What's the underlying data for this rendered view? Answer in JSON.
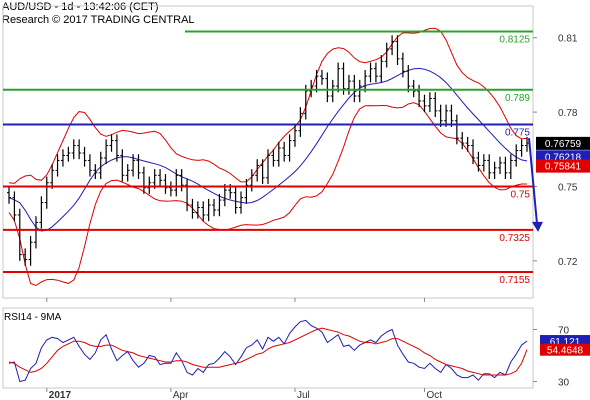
{
  "header": {
    "title": "AUD/USD - 1d - 13:42:06 (CET)",
    "credit": "Research © 2017 TRADING CENTRAL"
  },
  "colors": {
    "resistance": "#2ca02c",
    "pivot": "#1f1fb4",
    "support": "#e00000",
    "price_bars": "#000000",
    "bollinger": "#e00000",
    "moving_average": "#1f1fb4",
    "rsi": "#1f1fb4",
    "rsi_ma": "#e00000",
    "arrow": "#1f1fb4",
    "tag_price": "#000000",
    "tag_ma": "#1f1fb4",
    "tag_lower": "#e00000"
  },
  "chart_data": [
    {
      "type": "candlestick",
      "title": "AUD/USD - 1d",
      "ylim": [
        0.705,
        0.822
      ],
      "y_ticks": [
        0.72,
        0.75,
        0.78,
        0.81
      ],
      "y_tick_labels": [
        "0.72",
        "0.75",
        "0.78",
        "0.81"
      ],
      "x_tick_labels": [
        "2017",
        "Apr",
        "Jul",
        "Oct"
      ],
      "levels": [
        {
          "value": 0.8125,
          "label": "0.8125",
          "kind": "resistance"
        },
        {
          "value": 0.789,
          "label": "0.789",
          "kind": "resistance"
        },
        {
          "value": 0.775,
          "label": "0.775",
          "kind": "pivot"
        },
        {
          "value": 0.75,
          "label": "0.75",
          "kind": "support"
        },
        {
          "value": 0.7325,
          "label": "0.7325",
          "kind": "support"
        },
        {
          "value": 0.7155,
          "label": "0.7155",
          "kind": "support"
        }
      ],
      "price_tags": [
        {
          "value": 0.76759,
          "label": "0.76759",
          "kind": "price"
        },
        {
          "value": 0.76218,
          "label": "0.76218",
          "kind": "ma"
        },
        {
          "value": 0.75841,
          "label": "0.75841",
          "kind": "lower"
        }
      ],
      "arrow": {
        "from": 0.7695,
        "to": 0.7325
      },
      "close": [
        0.7455,
        0.7385,
        0.7225,
        0.7205,
        0.7275,
        0.7355,
        0.7435,
        0.7515,
        0.7565,
        0.7605,
        0.7625,
        0.7635,
        0.7665,
        0.7635,
        0.7605,
        0.7565,
        0.7555,
        0.7615,
        0.7665,
        0.7685,
        0.7625,
        0.7545,
        0.7565,
        0.7605,
        0.7555,
        0.7495,
        0.7515,
        0.7545,
        0.7525,
        0.7495,
        0.7485,
        0.7545,
        0.7505,
        0.7425,
        0.7395,
        0.7415,
        0.7385,
        0.7425,
        0.7405,
        0.7445,
        0.7485,
        0.7475,
        0.7415,
        0.7455,
        0.7505,
        0.7545,
        0.7585,
        0.7535,
        0.7625,
        0.7605,
        0.7655,
        0.7625,
        0.7685,
        0.7725,
        0.7795,
        0.7885,
        0.7905,
        0.7945,
        0.7935,
        0.7865,
        0.7905,
        0.7975,
        0.7895,
        0.7925,
        0.7865,
        0.7905,
        0.7945,
        0.7975,
        0.7945,
        0.8005,
        0.8055,
        0.8085,
        0.8015,
        0.7965,
        0.7905,
        0.7885,
        0.7845,
        0.7825,
        0.7855,
        0.7805,
        0.7765,
        0.7805,
        0.7765,
        0.7695,
        0.7675,
        0.7665,
        0.7615,
        0.7585,
        0.7605,
        0.7555,
        0.7575,
        0.7595,
        0.7555,
        0.7605,
        0.7645,
        0.7665,
        0.7675
      ]
    },
    {
      "type": "line",
      "title": "RSI14 - 9MA",
      "ylim": [
        25,
        85
      ],
      "y_ticks": [
        30,
        54.4648,
        61.121,
        70
      ],
      "y_tick_labels": [
        "30",
        "54.4648",
        "61.121",
        "70"
      ],
      "x_tick_labels": [
        "2017",
        "Apr",
        "Jul",
        "Oct"
      ],
      "series": [
        {
          "name": "RSI14",
          "values": [
            44,
            45,
            30,
            31,
            40,
            44,
            56,
            62,
            64,
            63,
            60,
            62,
            64,
            57,
            51,
            47,
            52,
            62,
            66,
            55,
            46,
            50,
            53,
            46,
            41,
            44,
            50,
            49,
            43,
            44,
            44,
            52,
            46,
            37,
            35,
            40,
            37,
            43,
            44,
            48,
            53,
            49,
            43,
            49,
            56,
            58,
            62,
            55,
            64,
            61,
            64,
            59,
            67,
            72,
            76,
            77,
            73,
            71,
            68,
            60,
            63,
            66,
            57,
            58,
            54,
            58,
            60,
            62,
            60,
            65,
            68,
            70,
            58,
            51,
            45,
            44,
            41,
            40,
            44,
            40,
            37,
            43,
            40,
            35,
            33,
            33,
            35,
            31,
            36,
            36,
            33,
            37,
            35,
            45,
            51,
            58,
            61.121
          ]
        },
        {
          "name": "9MA",
          "values": [
            45,
            44,
            41,
            39,
            37,
            38,
            40,
            44,
            49,
            54,
            57,
            59,
            61,
            61,
            60,
            58,
            57,
            57,
            58,
            58,
            56,
            54,
            53,
            52,
            50,
            49,
            48,
            47,
            46,
            45,
            45,
            46,
            46,
            45,
            43,
            42,
            41,
            41,
            41,
            41,
            42,
            43,
            44,
            45,
            47,
            49,
            51,
            52,
            55,
            57,
            58,
            59,
            60,
            62,
            64,
            66,
            68,
            70,
            71,
            70,
            69,
            68,
            66,
            65,
            63,
            61,
            60,
            60,
            59,
            60,
            61,
            63,
            63,
            61,
            59,
            57,
            55,
            52,
            50,
            47,
            45,
            43,
            42,
            41,
            40,
            38,
            37,
            36,
            35,
            35,
            35,
            35,
            35,
            36,
            38,
            44,
            54.4648
          ]
        }
      ],
      "tags": [
        {
          "value": 61.121,
          "label": "61.121",
          "kind": "rsi"
        },
        {
          "value": 54.4648,
          "label": "54.4648",
          "kind": "ma"
        }
      ]
    }
  ]
}
